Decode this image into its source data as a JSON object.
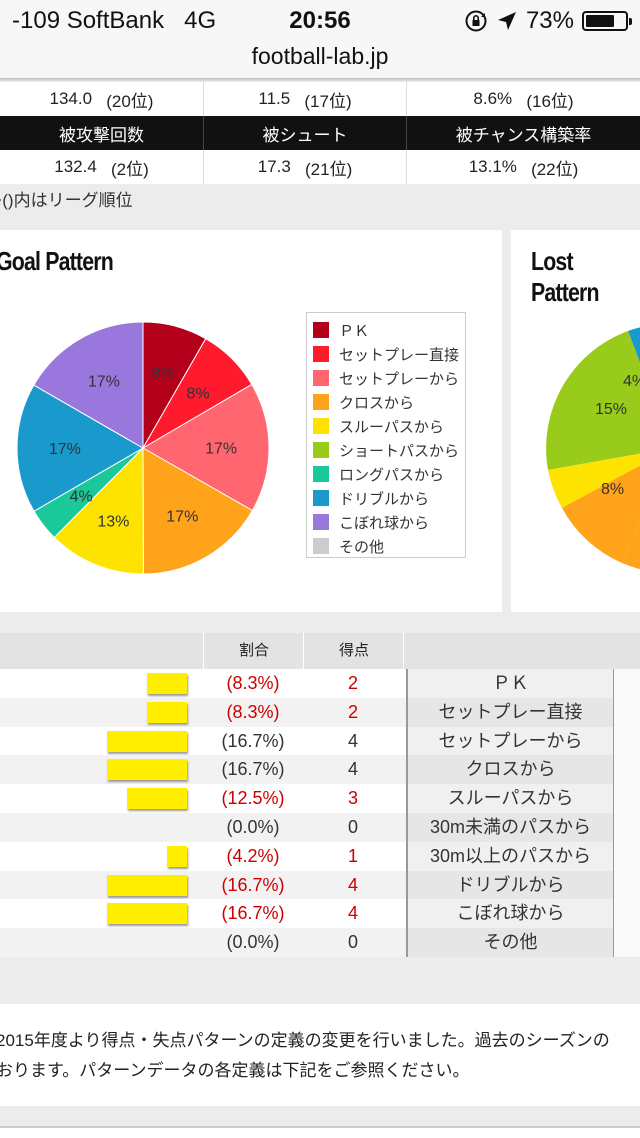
{
  "status_bar": {
    "carrier": "-109 SoftBank",
    "network": "4G",
    "time": "20:56",
    "battery_pct": "73%",
    "battery_level": 0.73
  },
  "browser": {
    "url": "football-lab.jp"
  },
  "stats": {
    "row1": [
      {
        "value": "134.0",
        "rank": "(20位)"
      },
      {
        "value": "11.5",
        "rank": "(17位)"
      },
      {
        "value": "8.6%",
        "rank": "(16位)"
      }
    ],
    "headers": [
      "被攻撃回数",
      "被シュート",
      "被チャンス構築率"
    ],
    "row2": [
      {
        "value": "132.4",
        "rank": "(2位)"
      },
      {
        "value": "17.3",
        "rank": "(21位)"
      },
      {
        "value": "13.1%",
        "rank": "(22位)"
      }
    ],
    "note": "※()内はリーグ順位"
  },
  "goal_pattern": {
    "title": "Goal Pattern",
    "legend": [
      {
        "label": "ＰＫ",
        "color": "#b3001b"
      },
      {
        "label": "セットプレー直接",
        "color": "#ff1a2e"
      },
      {
        "label": "セットプレーから",
        "color": "#ff6670"
      },
      {
        "label": "クロスから",
        "color": "#ffa31a"
      },
      {
        "label": "スルーパスから",
        "color": "#ffe300"
      },
      {
        "label": "ショートパスから",
        "color": "#99cc1a"
      },
      {
        "label": "ロングパスから",
        "color": "#1ac999"
      },
      {
        "label": "ドリブルから",
        "color": "#1a99cc"
      },
      {
        "label": "こぼれ球から",
        "color": "#9977dd"
      },
      {
        "label": "その他",
        "color": "#cccccc"
      }
    ]
  },
  "lost_pattern": {
    "title": "Lost Pattern",
    "labels": [
      "4%",
      "15%",
      "8%"
    ]
  },
  "chart_data": [
    {
      "type": "pie",
      "title": "Goal Pattern",
      "categories": [
        "ＰＫ",
        "セットプレー直接",
        "セットプレーから",
        "クロスから",
        "スルーパスから",
        "ショートパスから",
        "ロングパスから",
        "ドリブルから",
        "こぼれ球から",
        "その他"
      ],
      "values": [
        8.3,
        8.3,
        16.7,
        16.7,
        12.5,
        0,
        4.2,
        16.7,
        16.7,
        0
      ],
      "data_labels": [
        "8%",
        "8%",
        "17%",
        "17%",
        "13%",
        "",
        "4%",
        "17%",
        "17%",
        ""
      ],
      "colors": [
        "#b3001b",
        "#ff1a2e",
        "#ff6670",
        "#ffa31a",
        "#ffe300",
        "#99cc1a",
        "#1ac999",
        "#1a99cc",
        "#9977dd",
        "#cccccc"
      ]
    }
  ],
  "breakdown": {
    "headers": {
      "share": "割合",
      "score": "得点"
    },
    "rows": [
      {
        "pct": "(8.3%)",
        "score": "2",
        "name": "ＰＫ",
        "ratio": 0.083,
        "highlight": true
      },
      {
        "pct": "(8.3%)",
        "score": "2",
        "name": "セットプレー直接",
        "ratio": 0.083,
        "highlight": true
      },
      {
        "pct": "(16.7%)",
        "score": "4",
        "name": "セットプレーから",
        "ratio": 0.167,
        "highlight": false
      },
      {
        "pct": "(16.7%)",
        "score": "4",
        "name": "クロスから",
        "ratio": 0.167,
        "highlight": false
      },
      {
        "pct": "(12.5%)",
        "score": "3",
        "name": "スルーパスから",
        "ratio": 0.125,
        "highlight": true
      },
      {
        "pct": "(0.0%)",
        "score": "0",
        "name": "30m未満のパスから",
        "ratio": 0.0,
        "highlight": false
      },
      {
        "pct": "(4.2%)",
        "score": "1",
        "name": "30m以上のパスから",
        "ratio": 0.042,
        "highlight": true
      },
      {
        "pct": "(16.7%)",
        "score": "4",
        "name": "ドリブルから",
        "ratio": 0.167,
        "highlight": true
      },
      {
        "pct": "(16.7%)",
        "score": "4",
        "name": "こぼれ球から",
        "ratio": 0.167,
        "highlight": true
      },
      {
        "pct": "(0.0%)",
        "score": "0",
        "name": "その他",
        "ratio": 0.0,
        "highlight": false
      }
    ]
  },
  "footer": {
    "line1": "2015年度より得点・失点パターンの定義の変更を行いました。過去のシーズンの",
    "line2": "おります。パターンデータの各定義は下記をご参照ください。"
  }
}
